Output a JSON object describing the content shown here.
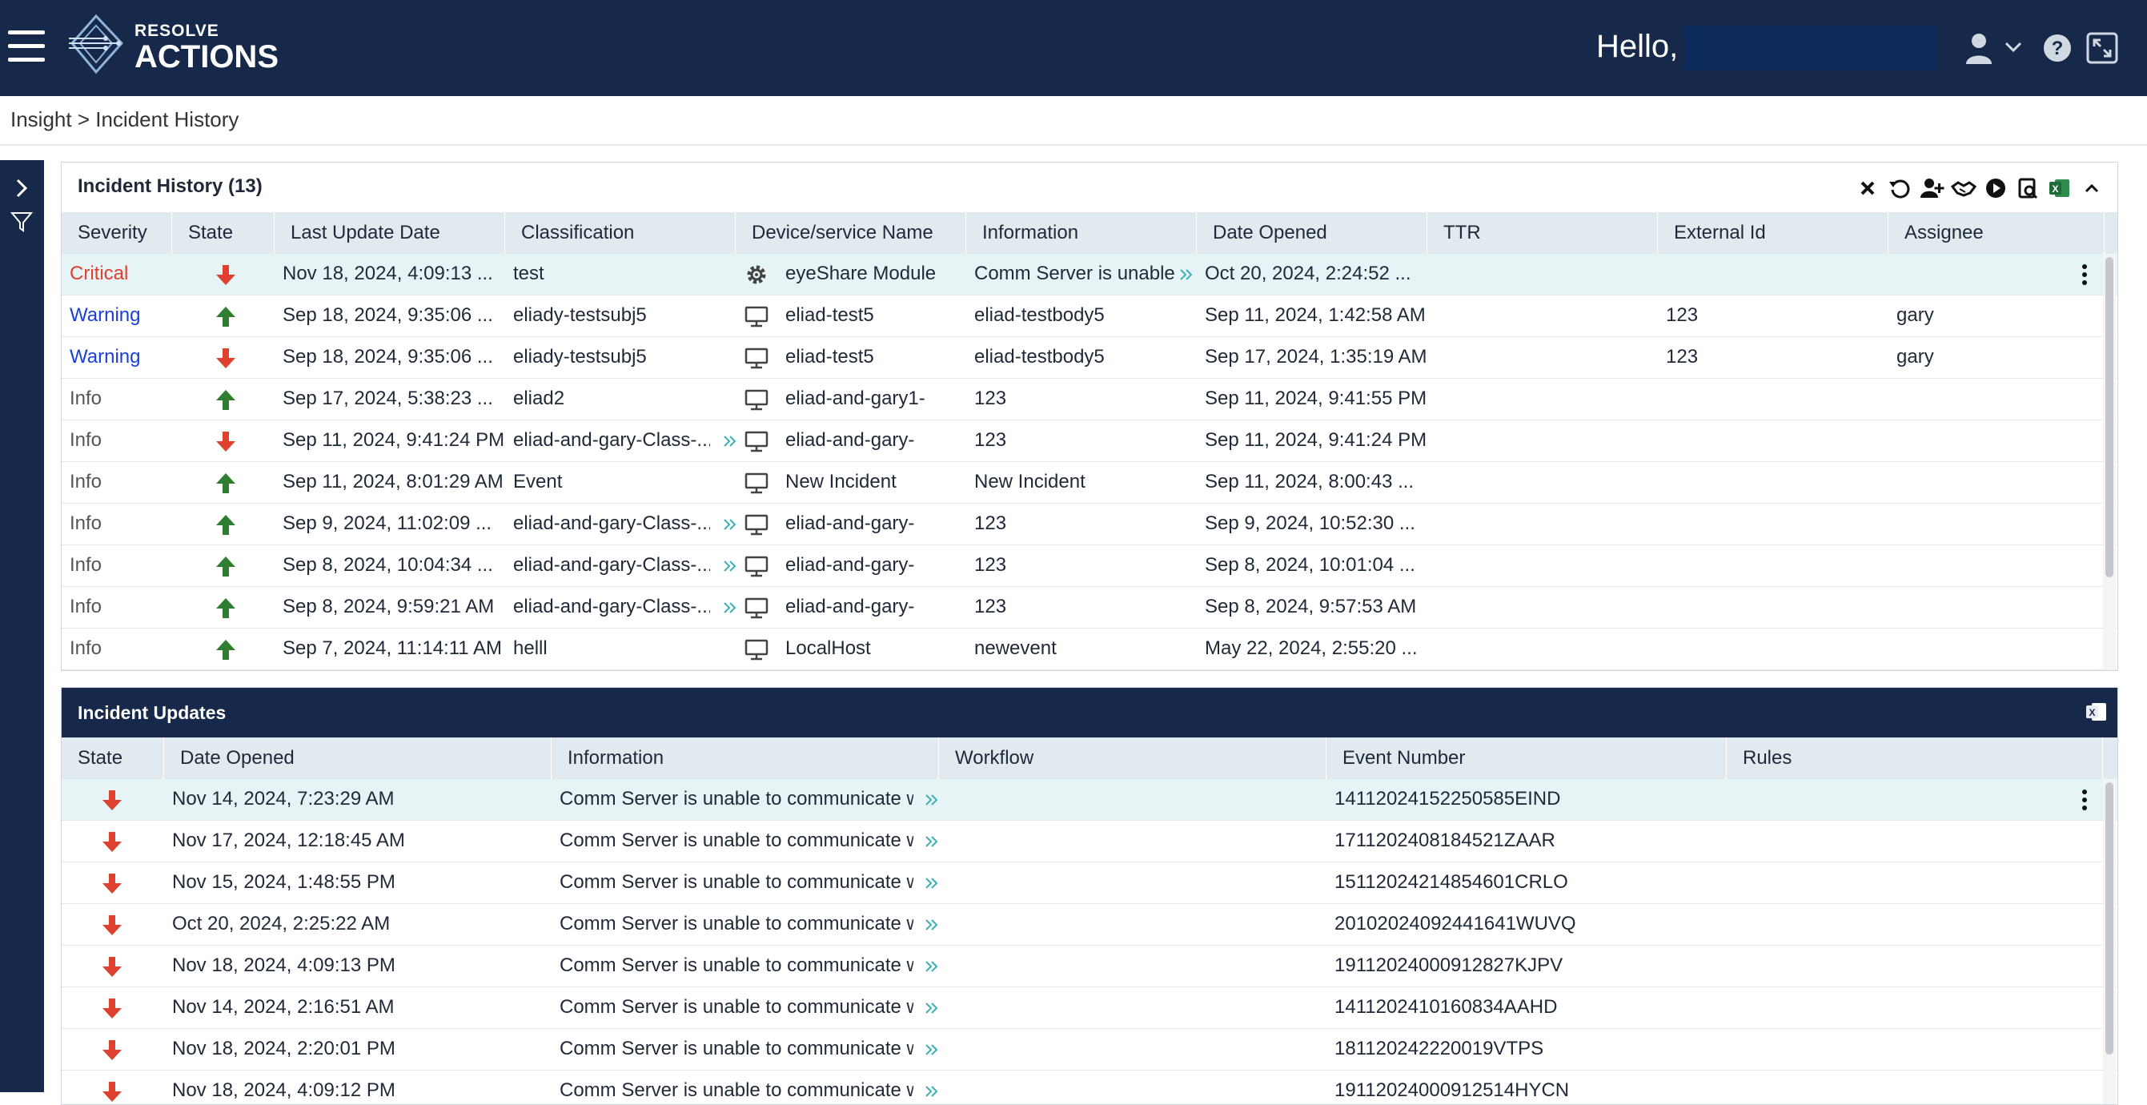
{
  "app": {
    "logo_line1": "RESOLVE",
    "logo_line2": "ACTIONS",
    "greeting": "Hello,",
    "colors": {
      "header": "#16294a",
      "accent": "#3bb0b8",
      "critical": "#e0402f",
      "warning": "#1a3fd6",
      "arrow_up": "#2e7d32",
      "arrow_down": "#e0402f"
    }
  },
  "breadcrumb": {
    "text": "Insight > Incident History"
  },
  "incident_history": {
    "title": "Incident History (13)",
    "toolbar_icons": [
      "close-icon",
      "refresh-icon",
      "add-user-icon",
      "handshake-icon",
      "play-icon",
      "report-search-icon",
      "excel-icon",
      "collapse-icon"
    ],
    "columns": [
      "Severity",
      "State",
      "Last Update Date",
      "Classification",
      "Device/service Name",
      "Information",
      "Date Opened",
      "TTR",
      "External Id",
      "Assignee"
    ],
    "rows": [
      {
        "severity": "Critical",
        "state": "down",
        "last_update": "Nov 18, 2024, 4:09:13 ...",
        "classification": "test",
        "class_expand": false,
        "device_icon": "gear-icon",
        "device": "eyeShare Module",
        "information": "Comm Server is unable...",
        "info_expand": true,
        "date_opened": "Oct 20, 2024, 2:24:52 ...",
        "ttr": "",
        "external_id": "",
        "assignee": "",
        "selected": true
      },
      {
        "severity": "Warning",
        "state": "up",
        "last_update": "Sep 18, 2024, 9:35:06 ...",
        "classification": "eliady-testsubj5",
        "class_expand": false,
        "device_icon": "monitor-icon",
        "device": "eliad-test5",
        "information": "eliad-testbody5",
        "info_expand": false,
        "date_opened": "Sep 11, 2024, 1:42:58 AM",
        "ttr": "",
        "external_id": "123",
        "assignee": "gary",
        "selected": false
      },
      {
        "severity": "Warning",
        "state": "down",
        "last_update": "Sep 18, 2024, 9:35:06 ...",
        "classification": "eliady-testsubj5",
        "class_expand": false,
        "device_icon": "monitor-icon",
        "device": "eliad-test5",
        "information": "eliad-testbody5",
        "info_expand": false,
        "date_opened": "Sep 17, 2024, 1:35:19 AM",
        "ttr": "",
        "external_id": "123",
        "assignee": "gary",
        "selected": false
      },
      {
        "severity": "Info",
        "state": "up",
        "last_update": "Sep 17, 2024, 5:38:23 ...",
        "classification": "eliad2",
        "class_expand": false,
        "device_icon": "monitor-icon",
        "device": "eliad-and-gary1-",
        "information": "123",
        "info_expand": false,
        "date_opened": "Sep 11, 2024, 9:41:55 PM",
        "ttr": "",
        "external_id": "",
        "assignee": "",
        "selected": false
      },
      {
        "severity": "Info",
        "state": "down",
        "last_update": "Sep 11, 2024, 9:41:24 PM",
        "classification": "eliad-and-gary-Class-...",
        "class_expand": true,
        "device_icon": "monitor-icon",
        "device": "eliad-and-gary-",
        "information": "123",
        "info_expand": false,
        "date_opened": "Sep 11, 2024, 9:41:24 PM",
        "ttr": "",
        "external_id": "",
        "assignee": "",
        "selected": false
      },
      {
        "severity": "Info",
        "state": "up",
        "last_update": "Sep 11, 2024, 8:01:29 AM",
        "classification": "Event",
        "class_expand": false,
        "device_icon": "monitor-icon",
        "device": "New Incident",
        "information": "New Incident",
        "info_expand": false,
        "date_opened": "Sep 11, 2024, 8:00:43 ...",
        "ttr": "",
        "external_id": "",
        "assignee": "",
        "selected": false
      },
      {
        "severity": "Info",
        "state": "up",
        "last_update": "Sep 9, 2024, 11:02:09 ...",
        "classification": "eliad-and-gary-Class-...",
        "class_expand": true,
        "device_icon": "monitor-icon",
        "device": "eliad-and-gary-",
        "information": "123",
        "info_expand": false,
        "date_opened": "Sep 9, 2024, 10:52:30 ...",
        "ttr": "",
        "external_id": "",
        "assignee": "",
        "selected": false
      },
      {
        "severity": "Info",
        "state": "up",
        "last_update": "Sep 8, 2024, 10:04:34 ...",
        "classification": "eliad-and-gary-Class-...",
        "class_expand": true,
        "device_icon": "monitor-icon",
        "device": "eliad-and-gary-",
        "information": "123",
        "info_expand": false,
        "date_opened": "Sep 8, 2024, 10:01:04 ...",
        "ttr": "",
        "external_id": "",
        "assignee": "",
        "selected": false
      },
      {
        "severity": "Info",
        "state": "up",
        "last_update": "Sep 8, 2024, 9:59:21 AM",
        "classification": "eliad-and-gary-Class-...",
        "class_expand": true,
        "device_icon": "monitor-icon",
        "device": "eliad-and-gary-",
        "information": "123",
        "info_expand": false,
        "date_opened": "Sep 8, 2024, 9:57:53 AM",
        "ttr": "",
        "external_id": "",
        "assignee": "",
        "selected": false
      },
      {
        "severity": "Info",
        "state": "up",
        "last_update": "Sep 7, 2024, 11:14:11 AM",
        "classification": "helll",
        "class_expand": false,
        "device_icon": "monitor-icon",
        "device": "LocalHost",
        "information": "newevent",
        "info_expand": false,
        "date_opened": "May 22, 2024, 2:55:20 ...",
        "ttr": "",
        "external_id": "",
        "assignee": "",
        "selected": false
      }
    ]
  },
  "incident_updates": {
    "title": "Incident Updates",
    "toolbar_icons": [
      "excel-icon"
    ],
    "columns": [
      "State",
      "Date Opened",
      "Information",
      "Workflow",
      "Event Number",
      "Rules"
    ],
    "rows": [
      {
        "state": "down",
        "date_opened": "Nov 14, 2024, 7:23:29 AM",
        "information": "Comm Server is unable to communicate w...",
        "workflow": "",
        "event_number": "14112024152250585EIND",
        "rules": "",
        "selected": true
      },
      {
        "state": "down",
        "date_opened": "Nov 17, 2024, 12:18:45 AM",
        "information": "Comm Server is unable to communicate w...",
        "workflow": "",
        "event_number": "1711202408184521ZAAR",
        "rules": "",
        "selected": false
      },
      {
        "state": "down",
        "date_opened": "Nov 15, 2024, 1:48:55 PM",
        "information": "Comm Server is unable to communicate w...",
        "workflow": "",
        "event_number": "15112024214854601CRLO",
        "rules": "",
        "selected": false
      },
      {
        "state": "down",
        "date_opened": "Oct 20, 2024, 2:25:22 AM",
        "information": "Comm Server is unable to communicate w...",
        "workflow": "",
        "event_number": "20102024092441641WUVQ",
        "rules": "",
        "selected": false
      },
      {
        "state": "down",
        "date_opened": "Nov 18, 2024, 4:09:13 PM",
        "information": "Comm Server is unable to communicate w...",
        "workflow": "",
        "event_number": "19112024000912827KJPV",
        "rules": "",
        "selected": false
      },
      {
        "state": "down",
        "date_opened": "Nov 14, 2024, 2:16:51 AM",
        "information": "Comm Server is unable to communicate w...",
        "workflow": "",
        "event_number": "1411202410160834AAHD",
        "rules": "",
        "selected": false
      },
      {
        "state": "down",
        "date_opened": "Nov 18, 2024, 2:20:01 PM",
        "information": "Comm Server is unable to communicate w...",
        "workflow": "",
        "event_number": "181120242220019VTPS",
        "rules": "",
        "selected": false
      },
      {
        "state": "down",
        "date_opened": "Nov 18, 2024, 4:09:12 PM",
        "information": "Comm Server is unable to communicate w...",
        "workflow": "",
        "event_number": "19112024000912514HYCN",
        "rules": "",
        "selected": false
      }
    ]
  }
}
